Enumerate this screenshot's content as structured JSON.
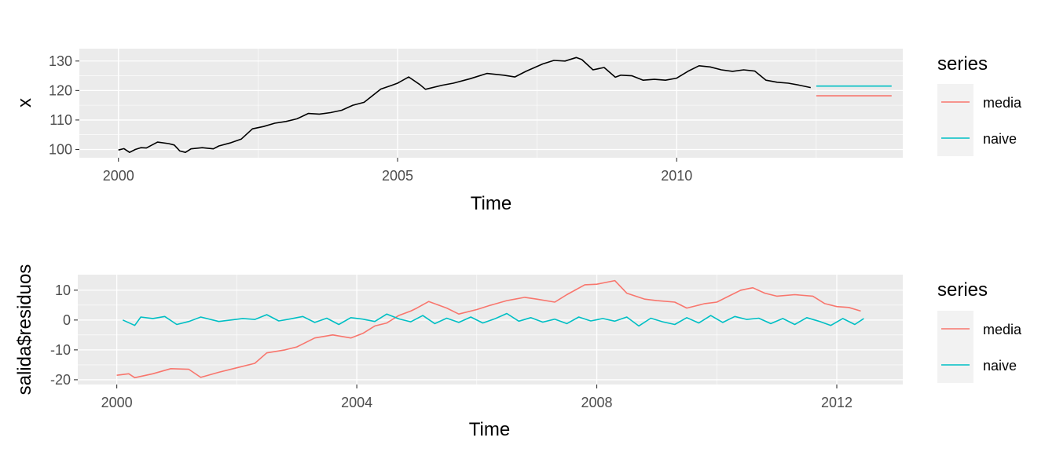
{
  "chart_data": [
    {
      "type": "line",
      "xlabel": "Time",
      "ylabel": "x",
      "xlim": [
        1999.3,
        2014.05
      ],
      "ylim": [
        97.2,
        134.2
      ],
      "x_ticks": [
        2000,
        2005,
        2010
      ],
      "x_minor_ticks": [
        2002.5,
        2007.5,
        2012.5
      ],
      "y_ticks": [
        100,
        110,
        120,
        130
      ],
      "y_minor_ticks": [
        105,
        115,
        125
      ],
      "x_tick_labels": [
        "2000",
        "2005",
        "2010"
      ],
      "y_tick_labels": [
        "100",
        "110",
        "120",
        "130"
      ],
      "grid": true,
      "legend": {
        "title": "series",
        "position": "right",
        "entries": [
          "media",
          "naive"
        ]
      },
      "series": [
        {
          "role": "observed",
          "color": "#000000",
          "x": [
            2000.0,
            2000.1,
            2000.2,
            2000.3,
            2000.4,
            2000.5,
            2000.7,
            2000.9,
            2001.0,
            2001.1,
            2001.2,
            2001.3,
            2001.5,
            2001.7,
            2001.8,
            2002.0,
            2002.2,
            2002.4,
            2002.6,
            2002.8,
            2003.0,
            2003.2,
            2003.4,
            2003.6,
            2003.8,
            2004.0,
            2004.2,
            2004.4,
            2004.5,
            2004.7,
            2004.9,
            2005.0,
            2005.2,
            2005.4,
            2005.5,
            2005.8,
            2006.0,
            2006.3,
            2006.6,
            2006.9,
            2007.1,
            2007.3,
            2007.6,
            2007.8,
            2008.0,
            2008.2,
            2008.3,
            2008.5,
            2008.7,
            2008.9,
            2009.0,
            2009.2,
            2009.4,
            2009.6,
            2009.8,
            2010.0,
            2010.2,
            2010.4,
            2010.6,
            2010.8,
            2011.0,
            2011.2,
            2011.4,
            2011.6,
            2011.8,
            2012.0,
            2012.2,
            2012.4
          ],
          "y": [
            99.8,
            100.3,
            99.0,
            100.0,
            100.6,
            100.5,
            102.5,
            102.0,
            101.5,
            99.5,
            99.0,
            100.2,
            100.6,
            100.2,
            101.2,
            102.2,
            103.5,
            107.0,
            107.8,
            108.9,
            109.5,
            110.4,
            112.2,
            112.0,
            112.5,
            113.3,
            115.0,
            116.0,
            117.5,
            120.5,
            121.8,
            122.5,
            124.6,
            122.0,
            120.4,
            121.8,
            122.5,
            124.0,
            125.8,
            125.2,
            124.6,
            126.5,
            129.0,
            130.2,
            130.0,
            131.2,
            130.5,
            127.0,
            127.8,
            124.5,
            125.2,
            125.0,
            123.5,
            123.8,
            123.5,
            124.2,
            126.5,
            128.4,
            128.0,
            127.0,
            126.5,
            127.0,
            126.6,
            123.5,
            122.8,
            122.5,
            121.8,
            121.0
          ]
        },
        {
          "name": "media",
          "color": "#F8766D",
          "x": [
            2012.5,
            2013.85
          ],
          "y": [
            118.2,
            118.2
          ]
        },
        {
          "name": "naive",
          "color": "#00BFC4",
          "x": [
            2012.5,
            2013.85
          ],
          "y": [
            121.5,
            121.5
          ]
        }
      ]
    },
    {
      "type": "line",
      "xlabel": "Time",
      "ylabel": "salida$residuos",
      "xlim": [
        1999.35,
        2013.1
      ],
      "ylim": [
        -21.6,
        15.2
      ],
      "x_ticks": [
        2000,
        2004,
        2008,
        2012
      ],
      "x_minor_ticks": [
        2002,
        2006,
        2010
      ],
      "y_ticks": [
        -20,
        -10,
        0,
        10
      ],
      "y_minor_ticks": [
        -15,
        -5,
        5
      ],
      "x_tick_labels": [
        "2000",
        "2004",
        "2008",
        "2012"
      ],
      "y_tick_labels": [
        "-20",
        "-10",
        "0",
        "10"
      ],
      "grid": true,
      "legend": {
        "title": "series",
        "position": "right",
        "entries": [
          "media",
          "naive"
        ]
      },
      "series": [
        {
          "name": "media",
          "color": "#F8766D",
          "x": [
            2000.0,
            2000.2,
            2000.3,
            2000.6,
            2000.9,
            2001.2,
            2001.4,
            2001.7,
            2002.0,
            2002.3,
            2002.5,
            2002.8,
            2003.0,
            2003.3,
            2003.6,
            2003.9,
            2004.1,
            2004.3,
            2004.5,
            2004.7,
            2004.9,
            2005.0,
            2005.2,
            2005.5,
            2005.7,
            2006.0,
            2006.2,
            2006.5,
            2006.8,
            2007.0,
            2007.3,
            2007.5,
            2007.8,
            2008.0,
            2008.3,
            2008.5,
            2008.8,
            2009.0,
            2009.3,
            2009.5,
            2009.8,
            2010.0,
            2010.2,
            2010.4,
            2010.6,
            2010.8,
            2011.0,
            2011.3,
            2011.6,
            2011.8,
            2012.0,
            2012.2,
            2012.4
          ],
          "y": [
            -18.5,
            -18.0,
            -19.3,
            -18.0,
            -16.3,
            -16.5,
            -19.2,
            -17.5,
            -16.0,
            -14.5,
            -11.0,
            -10.0,
            -9.0,
            -6.0,
            -5.0,
            -6.0,
            -4.5,
            -2.0,
            -1.0,
            1.5,
            3.0,
            4.0,
            6.2,
            4.0,
            2.0,
            3.5,
            4.8,
            6.5,
            7.6,
            7.0,
            6.0,
            8.5,
            11.8,
            12.0,
            13.2,
            9.0,
            7.0,
            6.5,
            6.0,
            4.0,
            5.5,
            6.0,
            8.0,
            10.0,
            10.8,
            9.0,
            8.0,
            8.5,
            8.0,
            5.5,
            4.5,
            4.2,
            3.0
          ]
        },
        {
          "name": "naive",
          "color": "#00BFC4",
          "x": [
            2000.1,
            2000.3,
            2000.4,
            2000.6,
            2000.8,
            2001.0,
            2001.2,
            2001.4,
            2001.7,
            2001.9,
            2002.1,
            2002.3,
            2002.5,
            2002.7,
            2002.9,
            2003.1,
            2003.3,
            2003.5,
            2003.7,
            2003.9,
            2004.1,
            2004.3,
            2004.5,
            2004.7,
            2004.9,
            2005.1,
            2005.3,
            2005.5,
            2005.7,
            2005.9,
            2006.1,
            2006.3,
            2006.5,
            2006.7,
            2006.9,
            2007.1,
            2007.3,
            2007.5,
            2007.7,
            2007.9,
            2008.1,
            2008.3,
            2008.5,
            2008.7,
            2008.9,
            2009.1,
            2009.3,
            2009.5,
            2009.7,
            2009.9,
            2010.1,
            2010.3,
            2010.5,
            2010.7,
            2010.9,
            2011.1,
            2011.3,
            2011.5,
            2011.7,
            2011.9,
            2012.1,
            2012.3,
            2012.45
          ],
          "y": [
            0.0,
            -1.8,
            1.0,
            0.5,
            1.2,
            -1.5,
            -0.5,
            1.0,
            -0.5,
            0.0,
            0.5,
            0.2,
            1.8,
            -0.3,
            0.4,
            1.2,
            -0.8,
            0.6,
            -1.5,
            0.8,
            0.3,
            -0.5,
            2.0,
            0.4,
            -0.6,
            1.5,
            -1.2,
            0.6,
            -0.8,
            1.0,
            -1.0,
            0.4,
            2.2,
            -0.4,
            0.8,
            -0.7,
            0.3,
            -1.2,
            1.0,
            -0.3,
            0.5,
            -0.4,
            1.0,
            -2.0,
            0.6,
            -0.6,
            -1.5,
            0.8,
            -1.0,
            1.5,
            -0.8,
            1.2,
            0.2,
            0.6,
            -1.2,
            0.5,
            -1.5,
            0.8,
            -0.4,
            -1.8,
            0.5,
            -1.5,
            0.5
          ]
        }
      ]
    }
  ]
}
